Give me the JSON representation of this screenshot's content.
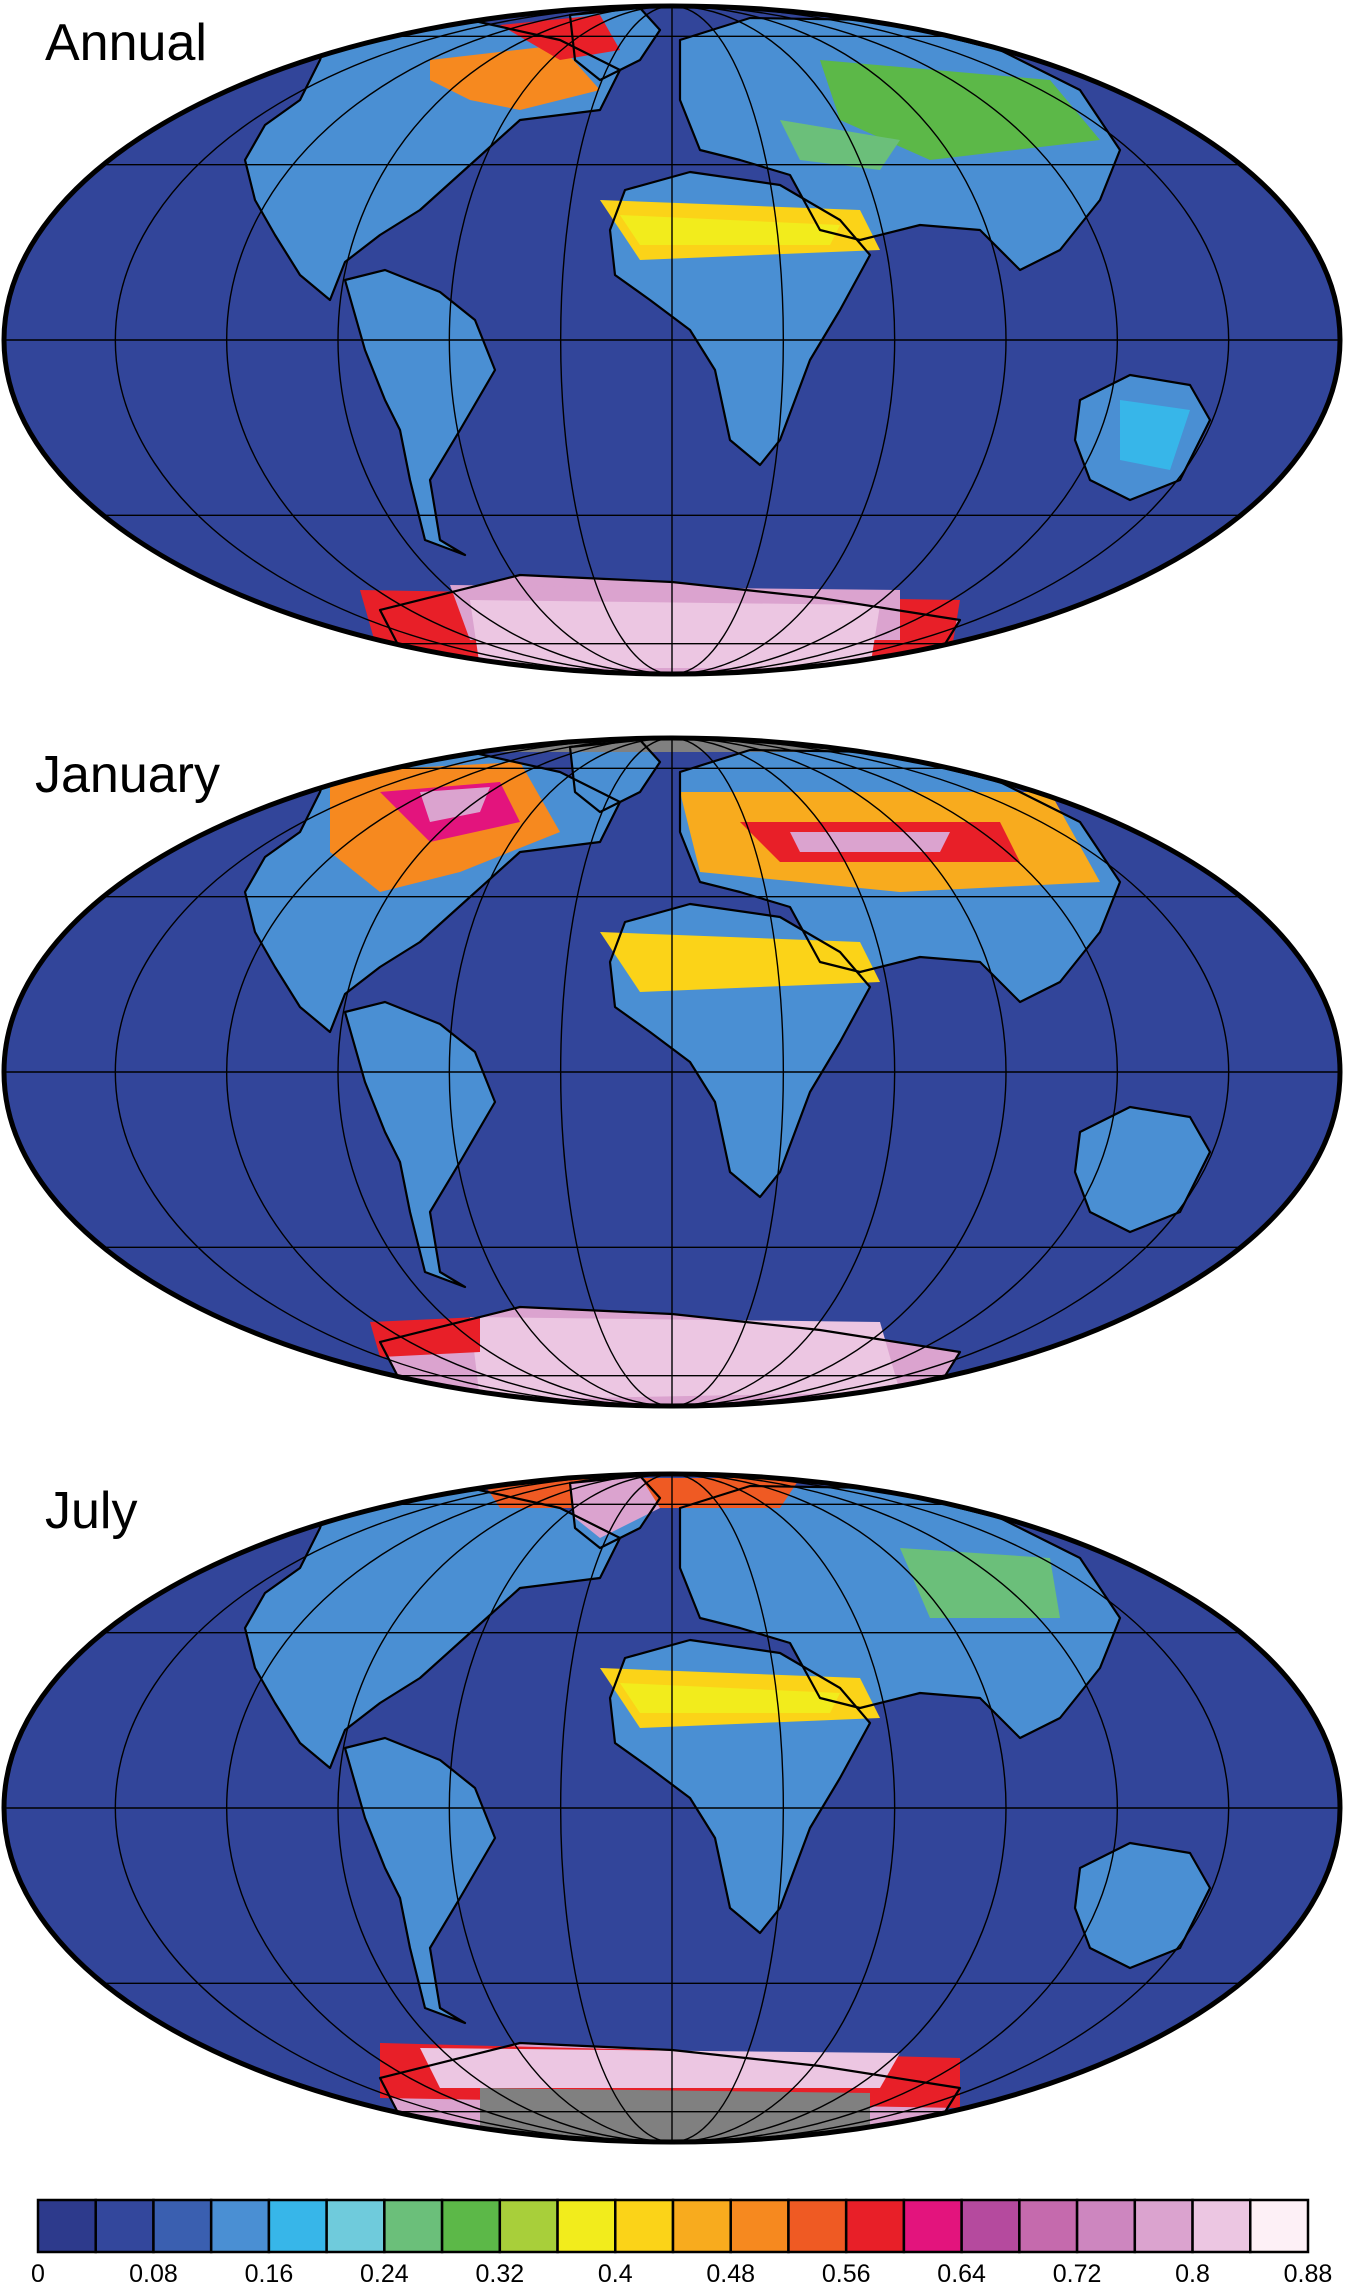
{
  "panels": [
    {
      "label": "Annual"
    },
    {
      "label": "January"
    },
    {
      "label": "July"
    }
  ],
  "colorbar": {
    "labels": [
      "0",
      "0.08",
      "0.16",
      "0.24",
      "0.32",
      "0.4",
      "0.48",
      "0.56",
      "0.64",
      "0.72",
      "0.8",
      "0.88"
    ],
    "colors": [
      "#2d3a8c",
      "#33479c",
      "#3a5fb0",
      "#4a8fd3",
      "#37b6e9",
      "#6fcbdc",
      "#6bbf7a",
      "#5cb848",
      "#a8cf3a",
      "#f2ec1c",
      "#fbd318",
      "#f8ab1e",
      "#f6891f",
      "#ef5a23",
      "#e81f28",
      "#e3147d",
      "#b54a9e",
      "#c56aad",
      "#cd86bf",
      "#dba3cf",
      "#ecc6e2",
      "#fdf0f6"
    ]
  },
  "colors": {
    "ocean": "#32459a",
    "land_low": "#4a8fd3",
    "missing": "#808080"
  }
}
